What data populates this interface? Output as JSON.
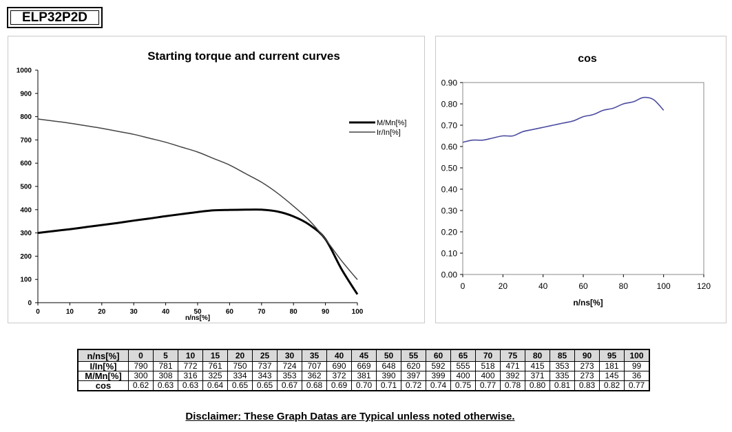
{
  "model": "ELP32P2D",
  "chart_data": [
    {
      "type": "line",
      "title": "Starting torque and current curves",
      "xlabel": "n/ns[%]",
      "ylabel": "",
      "xlim": [
        0,
        100
      ],
      "ylim": [
        0,
        1000
      ],
      "x_ticks": [
        0,
        10,
        20,
        30,
        40,
        50,
        60,
        70,
        80,
        90,
        100
      ],
      "y_ticks": [
        0,
        100,
        200,
        300,
        400,
        500,
        600,
        700,
        800,
        900,
        1000
      ],
      "legend_position": "right",
      "x": [
        0,
        5,
        10,
        15,
        20,
        25,
        30,
        35,
        40,
        45,
        50,
        55,
        60,
        65,
        70,
        75,
        80,
        85,
        90,
        95,
        100
      ],
      "series": [
        {
          "name": "M/Mn[%]",
          "color": "#000000",
          "width": "thick",
          "values": [
            300,
            308,
            316,
            325,
            334,
            343,
            353,
            362,
            372,
            381,
            390,
            397,
            399,
            400,
            400,
            392,
            371,
            335,
            273,
            145,
            36
          ]
        },
        {
          "name": "Ir/In[%]",
          "color": "#444444",
          "width": "thin",
          "values": [
            790,
            781,
            772,
            761,
            750,
            737,
            724,
            707,
            690,
            669,
            648,
            620,
            592,
            555,
            518,
            471,
            415,
            353,
            273,
            181,
            99
          ]
        }
      ]
    },
    {
      "type": "line",
      "title": "cos",
      "xlabel": "n/ns[%]",
      "ylabel": "",
      "xlim": [
        0,
        120
      ],
      "ylim": [
        0,
        0.9
      ],
      "x_ticks": [
        0,
        20,
        40,
        60,
        80,
        100,
        120
      ],
      "y_ticks": [
        "0.00",
        "0.10",
        "0.20",
        "0.30",
        "0.40",
        "0.50",
        "0.60",
        "0.70",
        "0.80",
        "0.90"
      ],
      "x": [
        0,
        5,
        10,
        15,
        20,
        25,
        30,
        35,
        40,
        45,
        50,
        55,
        60,
        65,
        70,
        75,
        80,
        85,
        90,
        95,
        100
      ],
      "series": [
        {
          "color": "#4a4aa0",
          "values": [
            0.62,
            0.63,
            0.63,
            0.64,
            0.65,
            0.65,
            0.67,
            0.68,
            0.69,
            0.7,
            0.71,
            0.72,
            0.74,
            0.75,
            0.77,
            0.78,
            0.8,
            0.81,
            0.83,
            0.82,
            0.77
          ]
        }
      ]
    }
  ],
  "table": {
    "rows": [
      {
        "label": "n/ns[%]",
        "values": [
          "0",
          "5",
          "10",
          "15",
          "20",
          "25",
          "30",
          "35",
          "40",
          "45",
          "50",
          "55",
          "60",
          "65",
          "70",
          "75",
          "80",
          "85",
          "90",
          "95",
          "100"
        ]
      },
      {
        "label": "I/In[%]",
        "values": [
          "790",
          "781",
          "772",
          "761",
          "750",
          "737",
          "724",
          "707",
          "690",
          "669",
          "648",
          "620",
          "592",
          "555",
          "518",
          "471",
          "415",
          "353",
          "273",
          "181",
          "99"
        ]
      },
      {
        "label": "M/Mn[%]",
        "values": [
          "300",
          "308",
          "316",
          "325",
          "334",
          "343",
          "353",
          "362",
          "372",
          "381",
          "390",
          "397",
          "399",
          "400",
          "400",
          "392",
          "371",
          "335",
          "273",
          "145",
          "36"
        ]
      },
      {
        "label": "cos",
        "values": [
          "0.62",
          "0.63",
          "0.63",
          "0.64",
          "0.65",
          "0.65",
          "0.67",
          "0.68",
          "0.69",
          "0.70",
          "0.71",
          "0.72",
          "0.74",
          "0.75",
          "0.77",
          "0.78",
          "0.80",
          "0.81",
          "0.83",
          "0.82",
          "0.77"
        ]
      }
    ]
  },
  "disclaimer": "Disclaimer: These Graph Datas are Typical unless noted otherwise."
}
